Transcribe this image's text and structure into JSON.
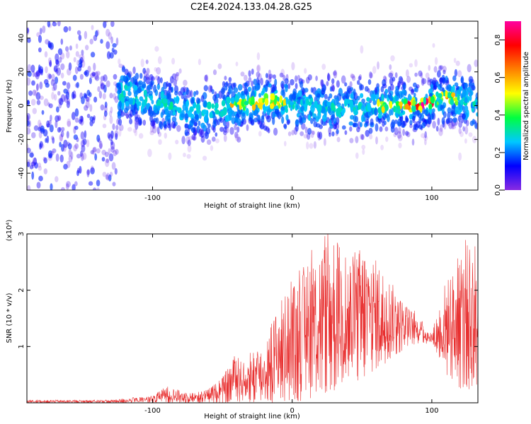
{
  "title": "C2E4.2024.133.04.28.G25",
  "chart_data": [
    {
      "type": "heatmap",
      "xlabel": "Height of straight line (km)",
      "ylabel": "Frequency (Hz)",
      "xlim": [
        -190,
        133
      ],
      "ylim": [
        -50,
        50
      ],
      "xticks": [
        -100,
        0,
        100
      ],
      "yticks": [
        -40,
        -20,
        0,
        20,
        40
      ],
      "colorbar": {
        "label": "Normalized spectral amplitude",
        "range": [
          0.0,
          0.9
        ],
        "ticks": [
          0.0,
          0.2,
          0.4,
          0.6,
          0.8
        ],
        "colors": [
          "#8a2be2",
          "#0000ff",
          "#00c8ff",
          "#00ff40",
          "#ffff00",
          "#ff8000",
          "#ff0000",
          "#ff00a0"
        ]
      },
      "ridge": {
        "x": [
          -190,
          -160,
          -130,
          -120,
          -100,
          -80,
          -60,
          -40,
          -20,
          -10,
          0,
          20,
          40,
          60,
          80,
          90,
          100,
          110,
          120,
          133
        ],
        "center_hz": [
          0,
          0,
          3,
          8,
          3,
          -2,
          -3,
          0,
          3,
          2,
          0,
          -1,
          -2,
          0,
          0,
          0,
          2,
          5,
          3,
          1
        ]
      }
    },
    {
      "type": "line",
      "xlabel": "Height of straight line (km)",
      "ylabel": "SNR (10 * v/v)",
      "y_multiplier": "(x10⁴)",
      "xlim": [
        -190,
        133
      ],
      "ylim": [
        0,
        3
      ],
      "xticks": [
        -100,
        0,
        100
      ],
      "yticks": [
        1,
        2,
        3
      ],
      "color": "#e83030",
      "envelope": {
        "x": [
          -190,
          -130,
          -120,
          -100,
          -90,
          -80,
          -70,
          -60,
          -50,
          -40,
          -35,
          -30,
          -20,
          -10,
          0,
          10,
          20,
          30,
          40,
          50,
          60,
          70,
          80,
          90,
          100,
          110,
          120,
          130,
          133
        ],
        "low": [
          0,
          0,
          0,
          0,
          0,
          0,
          0,
          0,
          0,
          0,
          0,
          0,
          0,
          0,
          0,
          0.05,
          0.15,
          0.2,
          0.3,
          0.4,
          0.6,
          0.75,
          0.95,
          1.05,
          1.05,
          0.5,
          0.25,
          0.2,
          0.2
        ],
        "high": [
          0.05,
          0.05,
          0.08,
          0.12,
          0.3,
          0.22,
          0.18,
          0.25,
          0.45,
          0.9,
          0.7,
          0.95,
          1.05,
          1.8,
          2.1,
          2.5,
          2.8,
          3.0,
          2.6,
          2.8,
          2.55,
          2.2,
          1.8,
          1.55,
          1.25,
          2.2,
          2.6,
          3.0,
          2.6
        ]
      }
    }
  ]
}
